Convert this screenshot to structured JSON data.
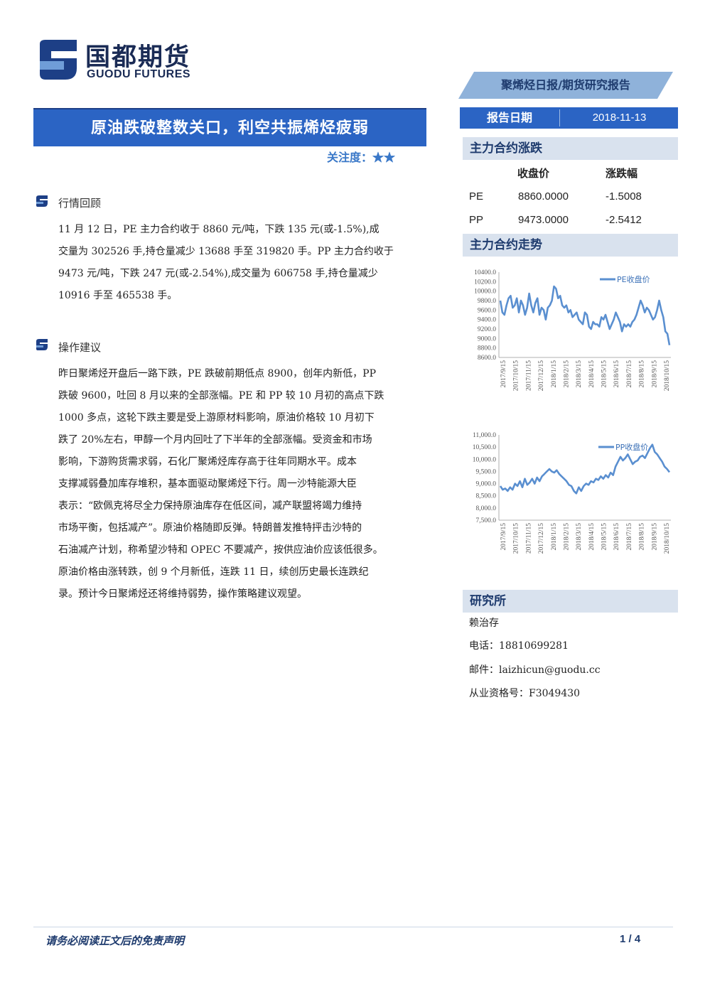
{
  "header": {
    "logo_cn": "国都期货",
    "logo_en": "GUODU FUTURES",
    "report_type": "聚烯烃日报/期货研究报告"
  },
  "title": "原油跌破整数关口，利空共振烯烃疲弱",
  "attention": "关注度：★★",
  "report_date": {
    "label": "报告日期",
    "value": "2018-11-13"
  },
  "sections": {
    "market_review": {
      "title": "行情回顾",
      "lines": [
        "11 月 12 日，PE 主力合约收于 8860 元/吨，下跌 135 元(或-1.5%),成",
        "交量为 302526 手,持仓量减少 13688 手至 319820 手。PP 主力合约收于",
        "9473 元/吨，下跌 247 元(或-2.54%),成交量为 606758 手,持仓量减少",
        "10916 手至 465538 手。"
      ]
    },
    "operation_advice": {
      "title": "操作建议",
      "lines": [
        "昨日聚烯烃开盘后一路下跌，PE 跌破前期低点 8900，创年内新低，PP",
        "跌破 9600，吐回 8 月以来的全部涨幅。PE 和 PP 较 10 月初的高点下跌",
        "1000 多点，这轮下跌主要是受上游原材料影响，原油价格较 10 月初下",
        "跌了 20%左右，甲醇一个月内回吐了下半年的全部涨幅。受资金和市场",
        "影响，下游购货需求弱，石化厂聚烯烃库存高于往年同期水平。成本",
        "支撑减弱叠加库存堆积，基本面驱动聚烯烃下行。周一沙特能源大臣",
        "表示：“欧佩克将尽全力保持原油库存在低区间，减产联盟将竭力维持",
        "市场平衡，包括减产”。原油价格随即反弹。特朗普发推特抨击沙特的",
        "石油减产计划，称希望沙特和 OPEC 不要减产，按供应油价应该低很多。",
        "原油价格由涨转跌，创 9 个月新低，连跌 11 日，续创历史最长连跌纪",
        "录。预计今日聚烯烃还将维持弱势，操作策略建议观望。"
      ]
    }
  },
  "sidebar": {
    "change_title": "主力合约涨跌",
    "table": {
      "headers": [
        "收盘价",
        "涨跌幅"
      ],
      "rows": [
        {
          "name": "PE",
          "close": "8860.0000",
          "change": "-1.5008"
        },
        {
          "name": "PP",
          "close": "9473.0000",
          "change": "-2.5412"
        }
      ]
    },
    "trend_title": "主力合约走势",
    "research_title": "研究所",
    "analyst": "赖治存",
    "phone": "电话：18810699281",
    "email": "邮件：laizhicun@guodu.cc",
    "license": "从业资格号：F3049430"
  },
  "chart_data": [
    {
      "type": "line",
      "series_name": "PE收盘价",
      "color": "#5a8fd0",
      "yticks": [
        "10400.0",
        "10200.0",
        "10000.0",
        "9800.0",
        "9600.0",
        "9400.0",
        "9200.0",
        "9000.0",
        "8800.0",
        "8600.0"
      ],
      "ylim": [
        8600,
        10400
      ],
      "xticks": [
        "2017/9/15",
        "2017/10/15",
        "2017/11/15",
        "2017/12/15",
        "2018/1/15",
        "2018/2/15",
        "2018/3/15",
        "2018/4/15",
        "2018/5/15",
        "2018/6/15",
        "2018/7/15",
        "2018/8/15",
        "2018/9/15",
        "2018/10/15"
      ],
      "values": [
        9800,
        9550,
        9500,
        9700,
        9850,
        9900,
        9650,
        9700,
        9850,
        9550,
        9800,
        9700,
        9500,
        9650,
        9950,
        9700,
        9550,
        9750,
        9850,
        9500,
        9650,
        9600,
        9400,
        9650,
        9700,
        9800,
        10100,
        10050,
        9850,
        9900,
        9700,
        9650,
        9700,
        9550,
        9600,
        9450,
        9500,
        9550,
        9400,
        9350,
        9300,
        9550,
        9500,
        9250,
        9200,
        9350,
        9300,
        9300,
        9250,
        9450,
        9400,
        9500,
        9350,
        9200,
        9300,
        9400,
        9550,
        9450,
        9350,
        9150,
        9300,
        9250,
        9300,
        9250,
        9350,
        9400,
        9500,
        9650,
        9800,
        9700,
        9550,
        9650,
        9600,
        9500,
        9400,
        9450,
        9600,
        9800,
        9600,
        9450,
        9150,
        9100,
        8860
      ]
    },
    {
      "type": "line",
      "series_name": "PP收盘价",
      "color": "#5a8fd0",
      "yticks": [
        "11,000.0",
        "10,500.0",
        "10,000.0",
        "9,500.0",
        "9,000.0",
        "8,500.0",
        "8,000.0",
        "7,500.0"
      ],
      "ylim": [
        7500,
        11000
      ],
      "xticks": [
        "2017/9/15",
        "2017/10/15",
        "2017/11/15",
        "2017/12/15",
        "2018/1/15",
        "2018/2/15",
        "2018/3/15",
        "2018/4/15",
        "2018/5/15",
        "2018/6/15",
        "2018/7/15",
        "2018/8/15",
        "2018/9/15",
        "2018/10/15"
      ],
      "values": [
        8900,
        8750,
        8800,
        8700,
        8850,
        8750,
        9000,
        8900,
        9100,
        8850,
        9200,
        8950,
        9050,
        9200,
        9000,
        9250,
        9100,
        9300,
        9400,
        9500,
        9600,
        9500,
        9450,
        9550,
        9400,
        9300,
        9200,
        9100,
        8950,
        8900,
        8700,
        8600,
        8850,
        8700,
        8900,
        9000,
        8950,
        9100,
        9050,
        9200,
        9150,
        9300,
        9200,
        9350,
        9250,
        9450,
        9350,
        9700,
        9900,
        10100,
        9950,
        10050,
        10200,
        10000,
        9800,
        9900,
        9950,
        10100,
        10150,
        10050,
        10250,
        10450,
        10600,
        10300,
        10200,
        10050,
        9900,
        9700,
        9600,
        9473
      ]
    }
  ],
  "footer": {
    "disclaimer": "请务必阅读正文后的免责声明",
    "page": "1 / 4"
  }
}
